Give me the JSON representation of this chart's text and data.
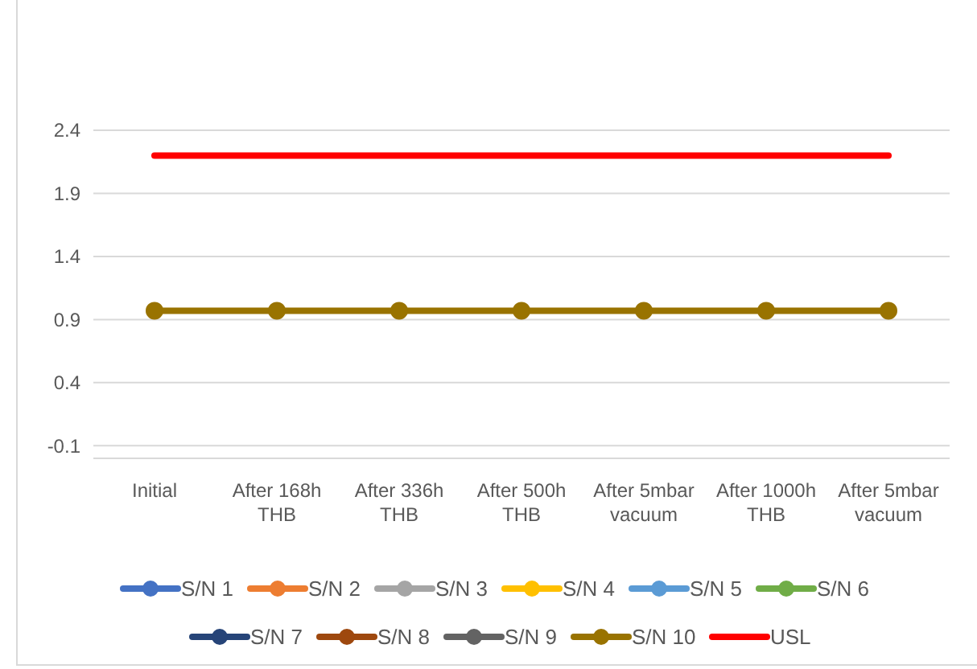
{
  "chart_data": {
    "type": "line",
    "categories": [
      "Initial",
      "After 168h THB",
      "After 336h THB",
      "After 500h THB",
      "After 5mbar vacuum",
      "After 1000h THB",
      "After 5mbar vacuum"
    ],
    "series": [
      {
        "name": "S/N 1",
        "color": "#4472c4",
        "marker": "circle",
        "values": [
          null,
          null,
          null,
          null,
          null,
          null,
          null
        ]
      },
      {
        "name": "S/N 2",
        "color": "#ed7d31",
        "marker": "circle",
        "values": [
          null,
          null,
          null,
          null,
          null,
          null,
          null
        ]
      },
      {
        "name": "S/N 3",
        "color": "#a5a5a5",
        "marker": "circle",
        "values": [
          null,
          null,
          null,
          null,
          null,
          null,
          null
        ]
      },
      {
        "name": "S/N 4",
        "color": "#ffc000",
        "marker": "circle",
        "values": [
          null,
          null,
          null,
          null,
          null,
          null,
          null
        ]
      },
      {
        "name": "S/N 5",
        "color": "#5b9bd5",
        "marker": "circle",
        "values": [
          null,
          null,
          null,
          null,
          null,
          null,
          null
        ]
      },
      {
        "name": "S/N 6",
        "color": "#70ad47",
        "marker": "circle",
        "values": [
          null,
          null,
          null,
          null,
          null,
          null,
          null
        ]
      },
      {
        "name": "S/N 7",
        "color": "#264478",
        "marker": "circle",
        "values": [
          null,
          null,
          null,
          null,
          null,
          null,
          null
        ]
      },
      {
        "name": "S/N 8",
        "color": "#9e480e",
        "marker": "circle",
        "values": [
          null,
          null,
          null,
          null,
          null,
          null,
          null
        ]
      },
      {
        "name": "S/N 9",
        "color": "#636363",
        "marker": "circle",
        "values": [
          null,
          null,
          null,
          null,
          null,
          null,
          null
        ]
      },
      {
        "name": "S/N 10",
        "color": "#997300",
        "marker": "circle",
        "values": [
          0.97,
          0.97,
          0.97,
          0.97,
          0.97,
          0.97,
          0.97
        ]
      },
      {
        "name": "USL",
        "color": "#ff0000",
        "marker": "none",
        "values": [
          2.2,
          2.2,
          2.2,
          2.2,
          2.2,
          2.2,
          2.2
        ]
      }
    ],
    "ylim": [
      -0.2,
      2.4
    ],
    "yticks": [
      -0.1,
      0.4,
      0.9,
      1.4,
      1.9,
      2.4
    ],
    "grid": "y",
    "legend": "bottom",
    "line_style": "solid"
  }
}
